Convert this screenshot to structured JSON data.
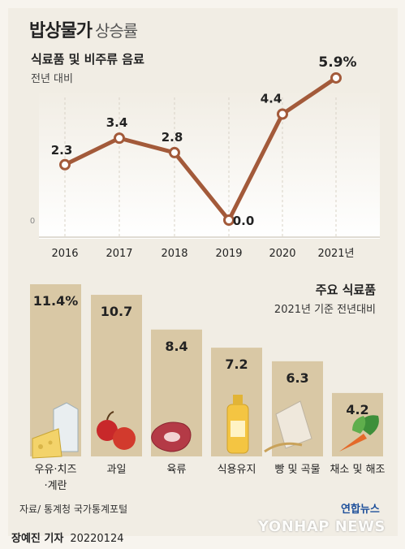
{
  "header": {
    "title": "밥상물가",
    "title_suffix": "상승률"
  },
  "line_section": {
    "title": "식료품 및 비주류 음료",
    "subtitle": "전년 대비"
  },
  "bar_section": {
    "title": "주요 식료품",
    "subtitle": "2021년 기준 전년대비"
  },
  "footer": {
    "source": "자료/ 통계청 국가통계포털",
    "reporter": "장예진 기자",
    "date": "20220124",
    "logo": "연합뉴스",
    "watermark": "YONHAP NEWS"
  },
  "colors": {
    "line": "#a35a3a",
    "bar": "#d9c8a5",
    "background": "#f1ede4"
  },
  "chart_data": [
    {
      "type": "line",
      "title": "식료품 및 비주류 음료",
      "subtitle": "전년 대비",
      "categories": [
        "2016",
        "2017",
        "2018",
        "2019",
        "2020",
        "2021년"
      ],
      "values": [
        2.3,
        3.4,
        2.8,
        0.0,
        4.4,
        5.9
      ],
      "value_labels": [
        "2.3",
        "3.4",
        "2.8",
        "0.0",
        "4.4",
        "5.9%"
      ],
      "y_tick": "0",
      "ylim": [
        0,
        6
      ],
      "grid": "vertical-dashed"
    },
    {
      "type": "bar",
      "title": "주요 식료품",
      "subtitle": "2021년 기준 전년대비",
      "categories": [
        "우유·치즈 ·계란",
        "과일",
        "육류",
        "식용유지",
        "빵 및 곡물",
        "채소 및 해조"
      ],
      "category_lines": [
        [
          "우유·치즈",
          "·계란"
        ],
        [
          "과일"
        ],
        [
          "육류"
        ],
        [
          "식용유지"
        ],
        [
          "빵 및 곡물"
        ],
        [
          "채소 및 해조"
        ]
      ],
      "values": [
        11.4,
        10.7,
        8.4,
        7.2,
        6.3,
        4.2
      ],
      "value_labels": [
        "11.4%",
        "10.7",
        "8.4",
        "7.2",
        "6.3",
        "4.2"
      ],
      "icons": [
        "milk-cheese-egg-icon",
        "apple-icon",
        "meat-icon",
        "oil-bottle-icon",
        "grain-bag-icon",
        "vegetable-icon"
      ]
    }
  ]
}
